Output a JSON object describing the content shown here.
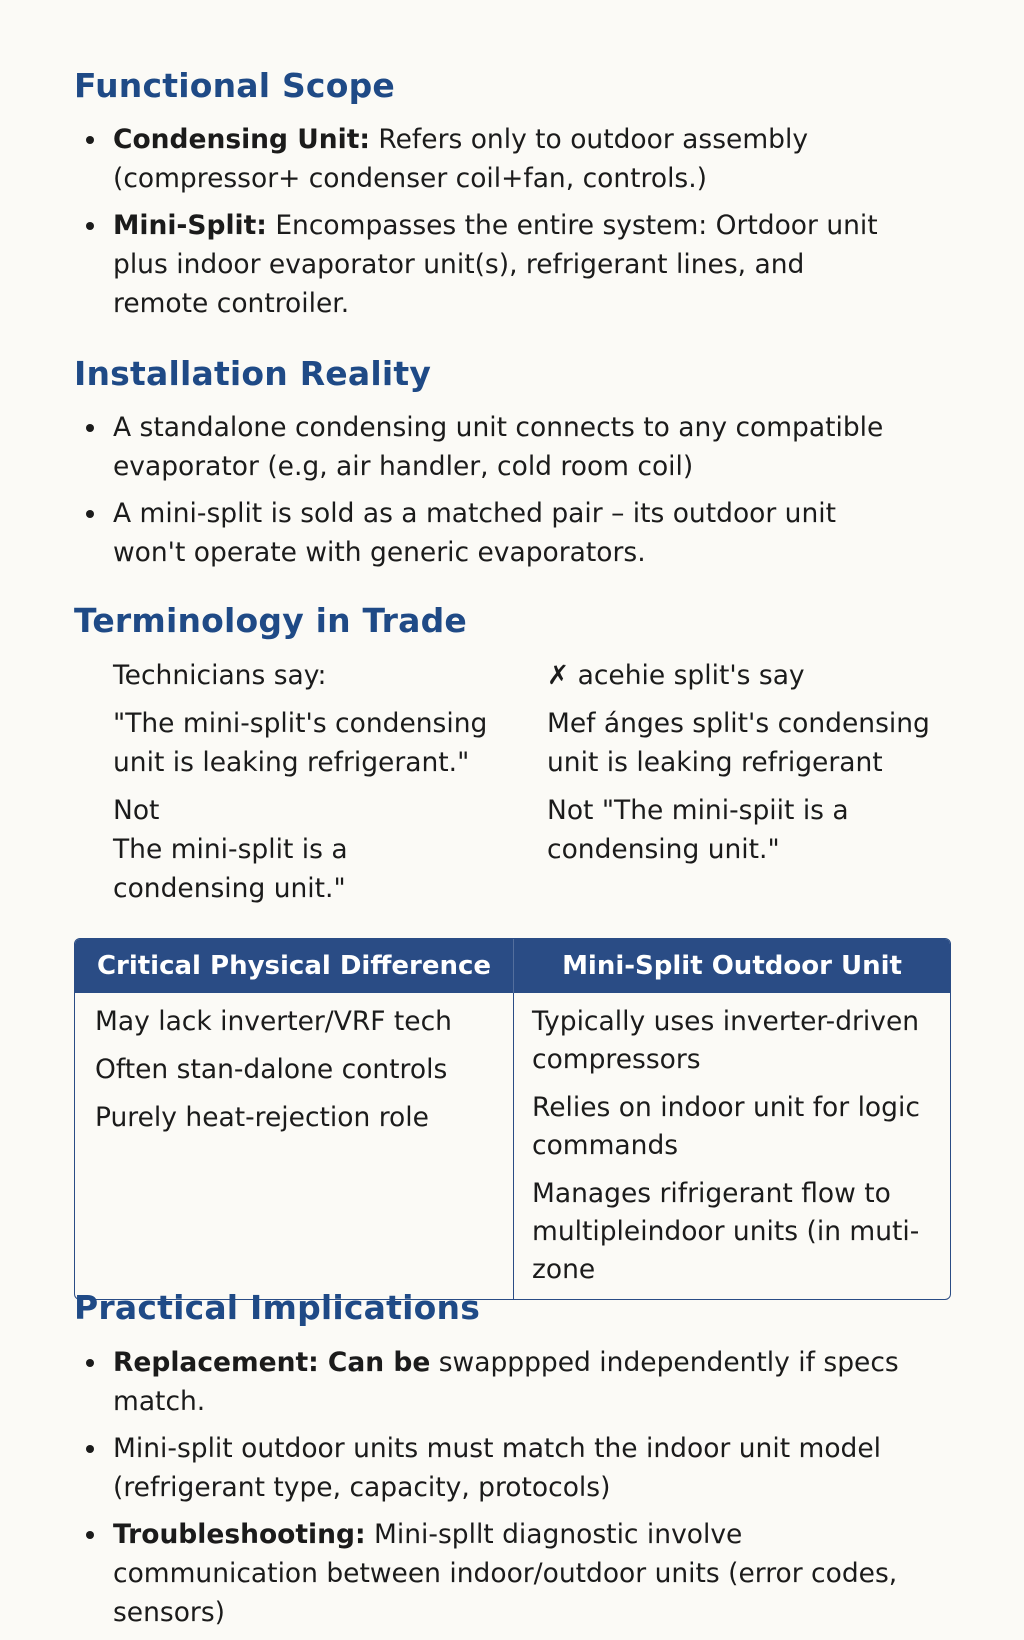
{
  "sections": {
    "scope": {
      "heading": "Functional Scope",
      "items": [
        {
          "bold": "Condensing Unit:",
          "text": " Refers only to outdoor assembly (compressor+ condenser coil+fan, controls.)"
        },
        {
          "bold": "Mini-Split:",
          "text": " Encompasses the entire system: Ortdoor unit plus indoor evaporator unit(s), refrigerant lines, and remote controiler."
        }
      ]
    },
    "installation": {
      "heading": "Installation Reality",
      "items": [
        {
          "text": "A standalone condensing unit connects to any compatible evaporator (e.g, air handler, cold room coil)"
        },
        {
          "text": "A mini-split is sold as a matched pair – its outdoor unit won't operate with generic evaporators."
        }
      ]
    },
    "terminology": {
      "heading": "Terminology in Trade",
      "left": [
        "Technicians say:",
        "\"The mini-split's condensing unit is leaking refrigerant.\"",
        "Not",
        "The mini-split is a condensing unit.\""
      ],
      "right": [
        "✗ acehie split's say",
        "Mef ánges split's condensing unit is leaking refrigerant",
        "Not \"The mini-spiit is a condensing unit.\""
      ]
    },
    "table": {
      "headers": [
        "Critical Physical Difference",
        "Mini-Split Outdoor Unit"
      ],
      "left": [
        "May lack inverter/VRF tech",
        "Often stan-dalone controls",
        "Purely heat-rejection role"
      ],
      "right": [
        "Typically uses inverter-driven compressors",
        "Relies on indoor unit for logic commands",
        "Manages rifrigerant flow to multipleindoor units (in muti-zone"
      ]
    },
    "implications": {
      "heading": "Practical Implications",
      "items": [
        {
          "bold": "Replacement: Can be",
          "text": " swapppped independently if specs match."
        },
        {
          "bold": "",
          "text": "Mini-split outdoor units must match the indoor unit model (refrigerant type, capacity, protocols)"
        },
        {
          "bold": "Troubleshooting:",
          "text": " Mini-spllt diagnostic involve communication between indoor/outdoor units (error codes, sensors)"
        }
      ]
    }
  },
  "colors": {
    "heading": "#1f4a86",
    "table_header": "#2a4c85",
    "background": "#fbfaf6"
  }
}
